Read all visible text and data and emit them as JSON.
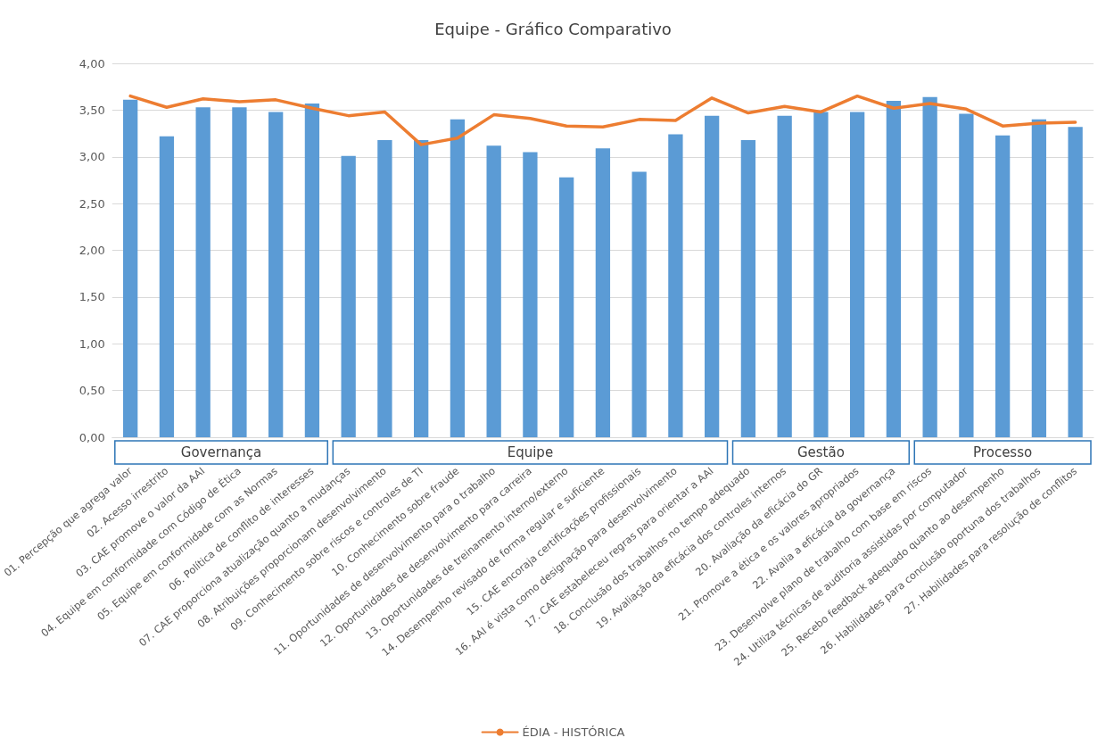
{
  "chart_data": {
    "type": "bar",
    "title": "Equipe - Gráfico Comparativo",
    "categories": [
      "01. Percepção que agrega valor",
      "02. Acesso irrestrito",
      "03. CAE promove o valor da AAI",
      "04. Equipe em conformidade com Código de Ética",
      "05. Equipe em conformidade com as Normas",
      "06. Política de conflito de interesses",
      "07. CAE proporciona atualização quanto a mudanças",
      "08. Atribuições proporcionam desenvolvimento",
      "09. Conhecimento sobre riscos e controles de TI",
      "10. Conhecimento sobre fraude",
      "11. Oportunidades de desenvolvimento para o trabalho",
      "12. Oportunidades de desenvolvimento para carreira",
      "13. Oportunidades de treinamento interno/externo",
      "14. Desempenho revisado de forma regular e suficiente",
      "15. CAE encoraja certificações profissionais",
      "16. AAI é vista como designação para desenvolvimento",
      "17. CAE estabeleceu regras para orientar a AAI",
      "18. Conclusão dos trabalhos no tempo adequado",
      "19. Avaliação da eficácia dos controles internos",
      "20. Avaliação da eficácia do GR",
      "21. Promove a ética e os valores apropriados",
      "22. Avalia a eficácia da governança",
      "23. Desenvolve plano de trabalho com base em riscos",
      "24. Utiliza técnicas de auditoria assistidas por computador",
      "25. Recebo feedback adequado quanto ao desempenho",
      "26. Habilidades para conclusão oportuna dos trabalhos",
      "27. Habilidades para resolução de conflitos"
    ],
    "series": [
      {
        "color": "#5b9bd5",
        "values": [
          3.61,
          3.22,
          3.53,
          3.53,
          3.48,
          3.57,
          3.01,
          3.18,
          3.18,
          3.4,
          3.12,
          3.05,
          2.78,
          3.09,
          2.84,
          3.24,
          3.44,
          3.18,
          3.44,
          3.48,
          3.48,
          3.6,
          3.64,
          3.46,
          3.23,
          3.4,
          3.32
        ]
      },
      {
        "type": "line",
        "name": "ÉDIA - HISTÓRICA",
        "color": "#ed7d31",
        "values": [
          3.65,
          3.53,
          3.62,
          3.59,
          3.61,
          3.52,
          3.44,
          3.48,
          3.13,
          3.2,
          3.45,
          3.41,
          3.33,
          3.32,
          3.4,
          3.39,
          3.63,
          3.47,
          3.54,
          3.48,
          3.65,
          3.52,
          3.57,
          3.51,
          3.33,
          3.36,
          3.37
        ]
      }
    ],
    "annotations": [
      "Governança",
      "Equipe",
      "Gestão",
      "Processo"
    ],
    "ylim": [
      0,
      4
    ],
    "yticks": [
      {
        "value": 0,
        "label": "0,00"
      },
      {
        "value": 0.5,
        "label": "0,50"
      },
      {
        "value": 1,
        "label": "1,00"
      },
      {
        "value": 1.5,
        "label": "1,50"
      },
      {
        "value": 2,
        "label": "2,00"
      },
      {
        "value": 2.5,
        "label": "2,50"
      },
      {
        "value": 3,
        "label": "3,00"
      },
      {
        "value": 3.5,
        "label": "3,50"
      },
      {
        "value": 4,
        "label": "4,00"
      }
    ],
    "grid": "y",
    "legend": "bottom",
    "marker": "none",
    "line_style": "solid"
  }
}
